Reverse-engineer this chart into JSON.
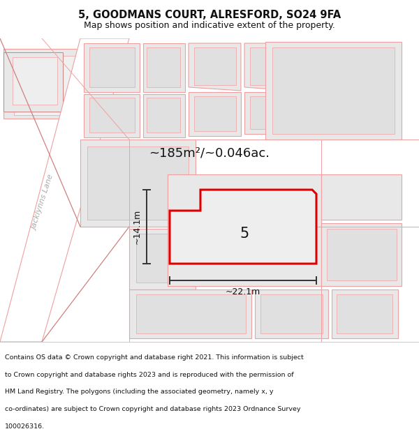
{
  "title": "5, GOODMANS COURT, ALRESFORD, SO24 9FA",
  "subtitle": "Map shows position and indicative extent of the property.",
  "area_label": "~185m²/~0.046ac.",
  "property_number": "5",
  "width_label": "~22.1m",
  "height_label": "~14.1m",
  "street_label": "Jacklynns Lane",
  "footer_lines": [
    "Contains OS data © Crown copyright and database right 2021. This information is subject",
    "to Crown copyright and database rights 2023 and is reproduced with the permission of",
    "HM Land Registry. The polygons (including the associated geometry, namely x, y",
    "co-ordinates) are subject to Crown copyright and database rights 2023 Ordnance Survey",
    "100026316."
  ],
  "bg_color": "#ffffff",
  "map_bg": "#ffffff",
  "footer_bg": "#ffffff",
  "property_edge": "#dd0000",
  "property_fill": "#eeeeee",
  "parcel_fill": "#e8e8e8",
  "parcel_edge": "#f0a0a0",
  "parcel_edge_dark": "#d08080",
  "dim_color": "#333333",
  "street_label_color": "#aaaaaa",
  "fig_width": 6.0,
  "fig_height": 6.25,
  "title_fontsize": 10.5,
  "subtitle_fontsize": 9.0,
  "footer_fontsize": 6.8
}
